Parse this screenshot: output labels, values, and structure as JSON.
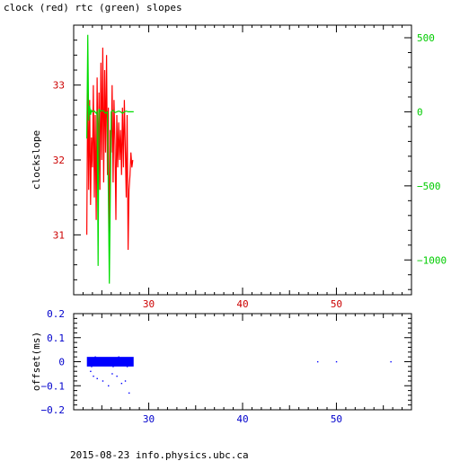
{
  "title": "clock (red) rtc (green) slopes",
  "footer": "2015-08-23 info.physics.ubc.ca",
  "chart_data": [
    {
      "type": "line",
      "title": "clock (red) rtc (green) slopes",
      "xlabel": "",
      "ylabel": "clockslope",
      "xlim": [
        22,
        58
      ],
      "ylim": [
        30.2,
        33.8
      ],
      "y2lim": [
        -1235,
        585
      ],
      "xticks": [
        30,
        40,
        50
      ],
      "yticks": [
        31,
        32,
        33
      ],
      "y2ticks": [
        -1000,
        -500,
        0,
        500
      ],
      "colors": {
        "clock": "#ff0000",
        "rtc": "#00dd00",
        "axis": "#000000"
      },
      "series": [
        {
          "name": "clock",
          "axis": "left",
          "color": "#ff0000",
          "x": [
            23.4,
            23.5,
            23.6,
            23.7,
            23.8,
            23.9,
            24.0,
            24.1,
            24.2,
            24.3,
            24.4,
            24.5,
            24.6,
            24.7,
            24.8,
            24.9,
            25.0,
            25.1,
            25.2,
            25.3,
            25.4,
            25.5,
            25.6,
            25.7,
            25.8,
            25.9,
            26.0,
            26.1,
            26.2,
            26.3,
            26.4,
            26.5,
            26.6,
            26.7,
            26.8,
            26.9,
            27.0,
            27.1,
            27.2,
            27.3,
            27.4,
            27.5,
            27.6,
            27.7,
            27.8,
            27.9,
            28.0,
            28.1,
            28.2,
            28.3
          ],
          "y": [
            31.0,
            33.2,
            31.6,
            32.8,
            31.4,
            32.3,
            31.9,
            33.0,
            31.5,
            32.6,
            31.2,
            33.1,
            31.8,
            32.9,
            31.6,
            33.3,
            32.0,
            33.5,
            31.7,
            33.2,
            32.1,
            33.4,
            31.8,
            32.7,
            30.6,
            32.4,
            32.1,
            33.0,
            31.7,
            32.8,
            32.2,
            31.2,
            32.6,
            31.9,
            32.5,
            32.0,
            32.4,
            31.8,
            32.7,
            31.9,
            32.8,
            32.2,
            31.5,
            32.6,
            30.8,
            31.6,
            31.8,
            32.1,
            31.9,
            32.0
          ]
        },
        {
          "name": "rtc",
          "axis": "right",
          "color": "#00dd00",
          "x": [
            23.4,
            23.5,
            23.6,
            23.7,
            23.8,
            23.9,
            24.0,
            24.2,
            24.4,
            24.5,
            24.6,
            24.7,
            24.8,
            25.0,
            25.2,
            25.4,
            25.6,
            25.8,
            26.0,
            26.2,
            26.4,
            26.6,
            26.8,
            27.0,
            27.2,
            27.4,
            27.6,
            27.8,
            28.0,
            28.2,
            28.4
          ],
          "y": [
            -180,
            520,
            -60,
            40,
            -20,
            10,
            0,
            5,
            -10,
            0,
            -1040,
            20,
            0,
            10,
            5,
            -10,
            0,
            -1160,
            0,
            10,
            -5,
            0,
            5,
            0,
            -10,
            0,
            5,
            0,
            0,
            0,
            0
          ]
        }
      ]
    },
    {
      "type": "scatter",
      "xlabel": "",
      "ylabel": "offset(ms)",
      "xlim": [
        22,
        58
      ],
      "ylim": [
        -0.2,
        0.2
      ],
      "xticks": [
        30,
        40,
        50
      ],
      "yticks": [
        -0.2,
        -0.1,
        0,
        0.1,
        0.2
      ],
      "ytick_labels": [
        "−0.2",
        "−0.1",
        "0",
        "0.1",
        "0.2"
      ],
      "colors": {
        "points": "#0000ff",
        "axis": "#000000"
      },
      "series": [
        {
          "name": "offset",
          "color": "#0000ff",
          "x": [
            23.6,
            23.9,
            24.3,
            24.6,
            24.9,
            25.3,
            25.6,
            25.9,
            26.2,
            26.5,
            26.8,
            27.1,
            27.4,
            27.7,
            28.0,
            28.2,
            24.1,
            25.1,
            26.1,
            27.1,
            27.9,
            24.5,
            25.7,
            26.6,
            27.5,
            23.8,
            48.0,
            50.0,
            55.8
          ],
          "y": [
            0.01,
            -0.02,
            0.02,
            -0.01,
            0.0,
            0.015,
            -0.015,
            0.01,
            -0.02,
            0.005,
            0.02,
            -0.01,
            0.0,
            -0.02,
            0.01,
            0.0,
            -0.06,
            -0.08,
            -0.05,
            -0.09,
            -0.13,
            -0.07,
            -0.1,
            -0.06,
            -0.08,
            -0.04,
            0.0,
            0.0,
            0.0
          ]
        }
      ]
    }
  ]
}
